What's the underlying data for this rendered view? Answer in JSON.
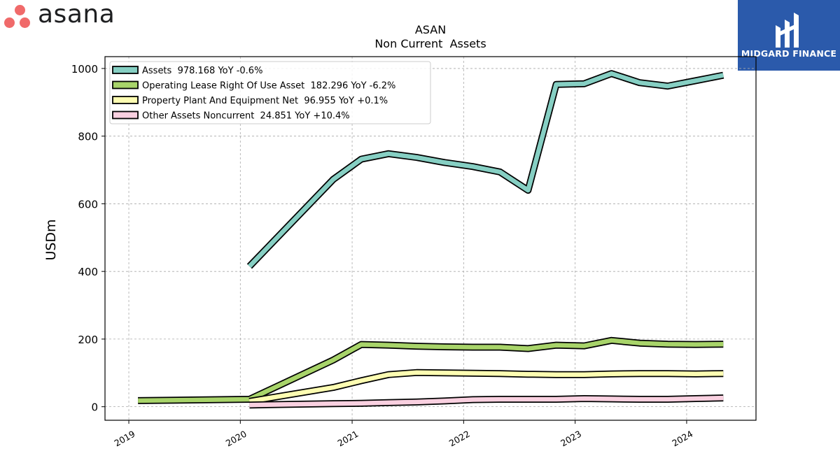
{
  "brand": {
    "name": "asana"
  },
  "partner": {
    "name": "MIDGARD FINANCE"
  },
  "colors": {
    "assets": "#86cfc3",
    "lease": "#a8d46a",
    "ppe": "#fdfdb2",
    "other": "#f9d0e0",
    "brand_dots": "#f06a6a",
    "partner_bg": "#2b5aab"
  },
  "chart_data": {
    "type": "line",
    "title": "ASAN",
    "subtitle": "Non Current  Assets",
    "xlabel": "",
    "ylabel": "USDm",
    "xlim": [
      "2018-10-15",
      "2024-08-15"
    ],
    "ylim": [
      -40,
      1035
    ],
    "xticks": [
      "2019",
      "2020",
      "2021",
      "2022",
      "2023",
      "2024"
    ],
    "yticks": [
      0,
      200,
      400,
      600,
      800,
      1000
    ],
    "grid": true,
    "legend_position": "top-left",
    "series": [
      {
        "key": "assets",
        "name": "Assets  978.168 YoY -0.6%",
        "points": [
          [
            "2020-01-31",
            415
          ],
          [
            "2020-10-31",
            672
          ],
          [
            "2021-01-31",
            732
          ],
          [
            "2021-04-30",
            748
          ],
          [
            "2021-07-31",
            737
          ],
          [
            "2021-10-31",
            722
          ],
          [
            "2022-01-31",
            710
          ],
          [
            "2022-04-30",
            694
          ],
          [
            "2022-07-31",
            640
          ],
          [
            "2022-10-31",
            953
          ],
          [
            "2023-01-31",
            955
          ],
          [
            "2023-04-30",
            985
          ],
          [
            "2023-07-31",
            958
          ],
          [
            "2023-10-31",
            948
          ],
          [
            "2024-01-31",
            964
          ],
          [
            "2024-04-30",
            980
          ]
        ]
      },
      {
        "key": "lease",
        "name": "Operating Lease Right Of Use Asset  182.296 YoY -6.2%",
        "points": [
          [
            "2019-01-31",
            18
          ],
          [
            "2020-01-31",
            22
          ],
          [
            "2020-10-31",
            138
          ],
          [
            "2021-01-31",
            184
          ],
          [
            "2021-04-30",
            182
          ],
          [
            "2021-07-31",
            179
          ],
          [
            "2021-10-31",
            177
          ],
          [
            "2022-01-31",
            176
          ],
          [
            "2022-04-30",
            176
          ],
          [
            "2022-07-31",
            172
          ],
          [
            "2022-10-31",
            182
          ],
          [
            "2023-01-31",
            180
          ],
          [
            "2023-04-30",
            196
          ],
          [
            "2023-07-31",
            188
          ],
          [
            "2023-10-31",
            185
          ],
          [
            "2024-01-31",
            184
          ],
          [
            "2024-04-30",
            185
          ]
        ]
      },
      {
        "key": "ppe",
        "name": "Property Plant And Equipment Net  96.955 YoY +0.1%",
        "points": [
          [
            "2020-01-31",
            16
          ],
          [
            "2020-10-31",
            57
          ],
          [
            "2021-01-31",
            77
          ],
          [
            "2021-04-30",
            95
          ],
          [
            "2021-07-31",
            101
          ],
          [
            "2021-10-31",
            100
          ],
          [
            "2022-01-31",
            99
          ],
          [
            "2022-04-30",
            98
          ],
          [
            "2022-07-31",
            96
          ],
          [
            "2022-10-31",
            95
          ],
          [
            "2023-01-31",
            95
          ],
          [
            "2023-04-30",
            97
          ],
          [
            "2023-07-31",
            98
          ],
          [
            "2023-10-31",
            98
          ],
          [
            "2024-01-31",
            97
          ],
          [
            "2024-04-30",
            98
          ]
        ]
      },
      {
        "key": "other",
        "name": "Other Assets Noncurrent  24.851 YoY +10.4%",
        "points": [
          [
            "2020-01-31",
            5
          ],
          [
            "2020-10-31",
            9
          ],
          [
            "2021-01-31",
            10
          ],
          [
            "2021-04-30",
            12
          ],
          [
            "2021-07-31",
            14
          ],
          [
            "2021-10-31",
            17
          ],
          [
            "2022-01-31",
            21
          ],
          [
            "2022-04-30",
            22
          ],
          [
            "2022-07-31",
            22
          ],
          [
            "2022-10-31",
            22
          ],
          [
            "2023-01-31",
            24
          ],
          [
            "2023-04-30",
            23
          ],
          [
            "2023-07-31",
            22
          ],
          [
            "2023-10-31",
            22
          ],
          [
            "2024-01-31",
            24
          ],
          [
            "2024-04-30",
            26
          ]
        ]
      }
    ]
  }
}
